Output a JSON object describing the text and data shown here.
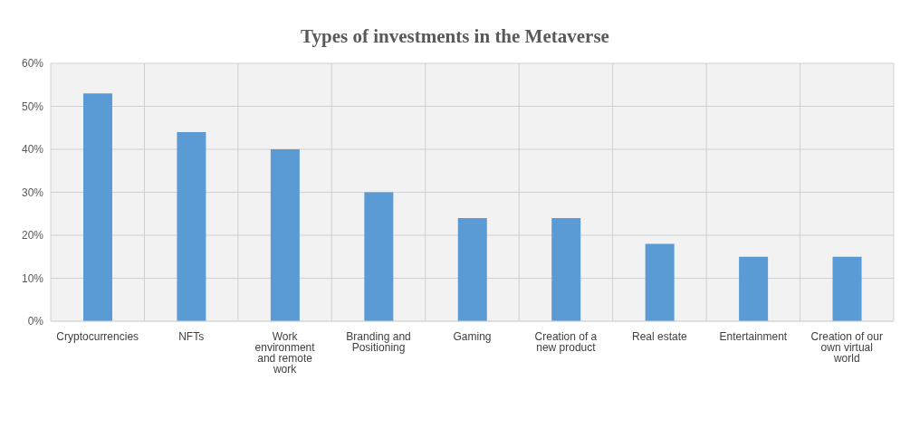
{
  "chart_data": {
    "type": "bar",
    "title": "Types of investments in the Metaverse",
    "categories": [
      "Cryptocurrencies",
      "NFTs",
      "Work environment and remote work",
      "Branding and Positioning",
      "Gaming",
      "Creation of a new product",
      "Real estate",
      "Entertainment",
      "Creation of our own virtual world"
    ],
    "values": [
      53,
      44,
      40,
      30,
      24,
      24,
      18,
      15,
      15
    ],
    "color": "#5b9bd5",
    "ylim": [
      0,
      60
    ],
    "yticks": [
      {
        "value": 0,
        "label": "0%"
      },
      {
        "value": 10,
        "label": "10%"
      },
      {
        "value": 20,
        "label": "20%"
      },
      {
        "value": 30,
        "label": "30%"
      },
      {
        "value": 40,
        "label": "40%"
      },
      {
        "value": 50,
        "label": "50%"
      },
      {
        "value": 60,
        "label": "60%"
      }
    ],
    "grid": true
  }
}
